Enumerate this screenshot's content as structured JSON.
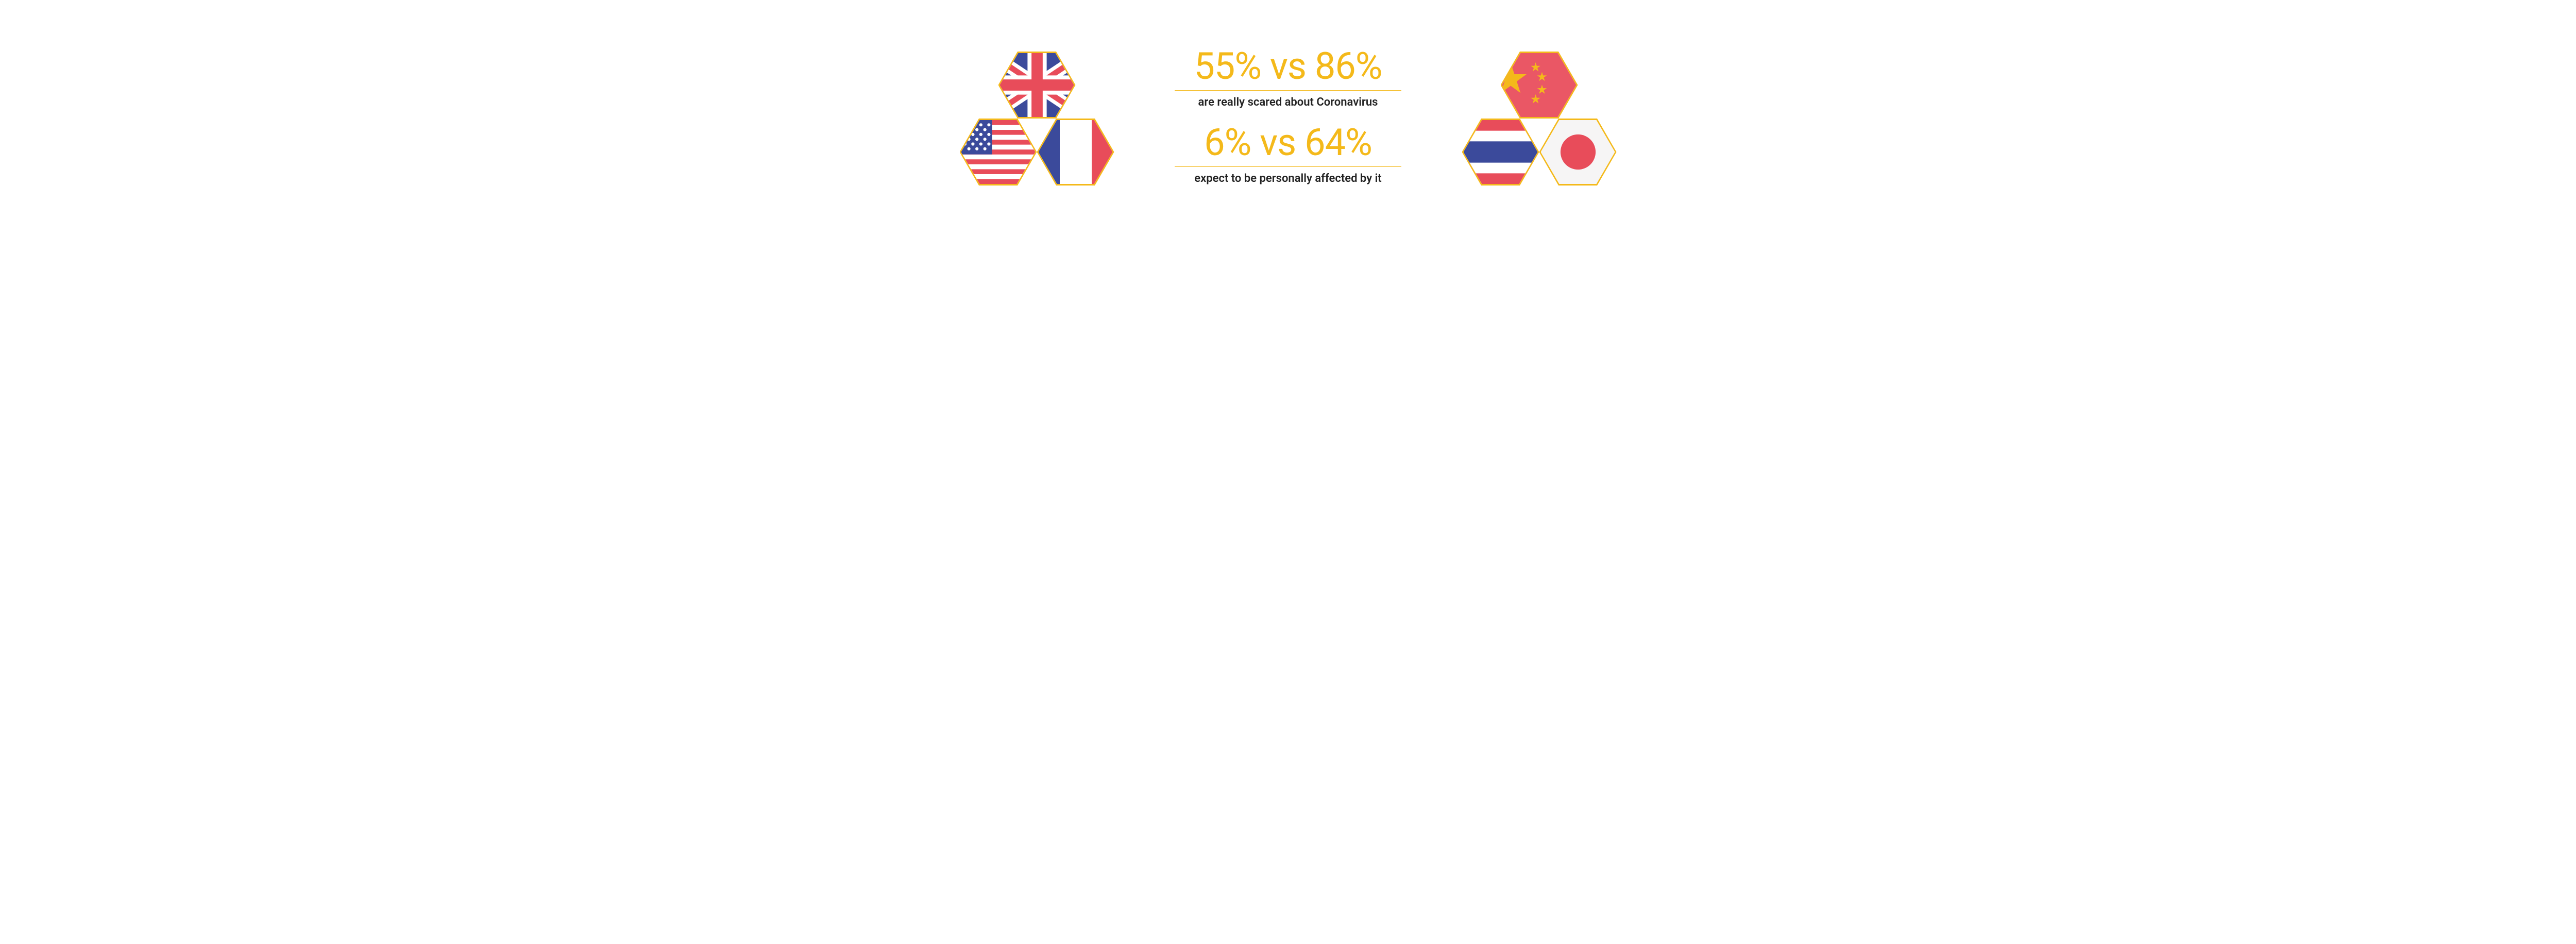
{
  "colors": {
    "accent": "#f4b91a",
    "ink": "#222222",
    "uk_blue": "#3b4a9b",
    "uk_red": "#e84c5a",
    "us_red": "#e84c5a",
    "us_blue": "#3b4a9b",
    "fr_blue": "#3b4a9b",
    "fr_red": "#e84c5a",
    "cn_red": "#ea5765",
    "cn_star": "#f4b91a",
    "th_red": "#e84c5a",
    "th_blue": "#3b4a9b",
    "jp_red": "#e84c5a",
    "jp_bg": "#f6f5f5",
    "white": "#ffffff"
  },
  "stats": [
    {
      "left_pct": "55%",
      "right_pct": "86%",
      "joiner": "vs",
      "caption": "are really scared about Coronavirus",
      "fontsize_big": 72,
      "fontsize_caption": 22
    },
    {
      "left_pct": "6%",
      "right_pct": "64%",
      "joiner": "vs",
      "caption": "expect to be personally affected by it",
      "fontsize_big": 72,
      "fontsize_caption": 22
    }
  ],
  "left_flags": {
    "top": "uk",
    "bottom_left": "us",
    "bottom_right": "france"
  },
  "right_flags": {
    "top": "china",
    "bottom_left": "thailand",
    "bottom_right": "japan"
  },
  "hexagon": {
    "border_width": 3,
    "width": 150,
    "height": 130,
    "border_color": "#f4b91a"
  }
}
